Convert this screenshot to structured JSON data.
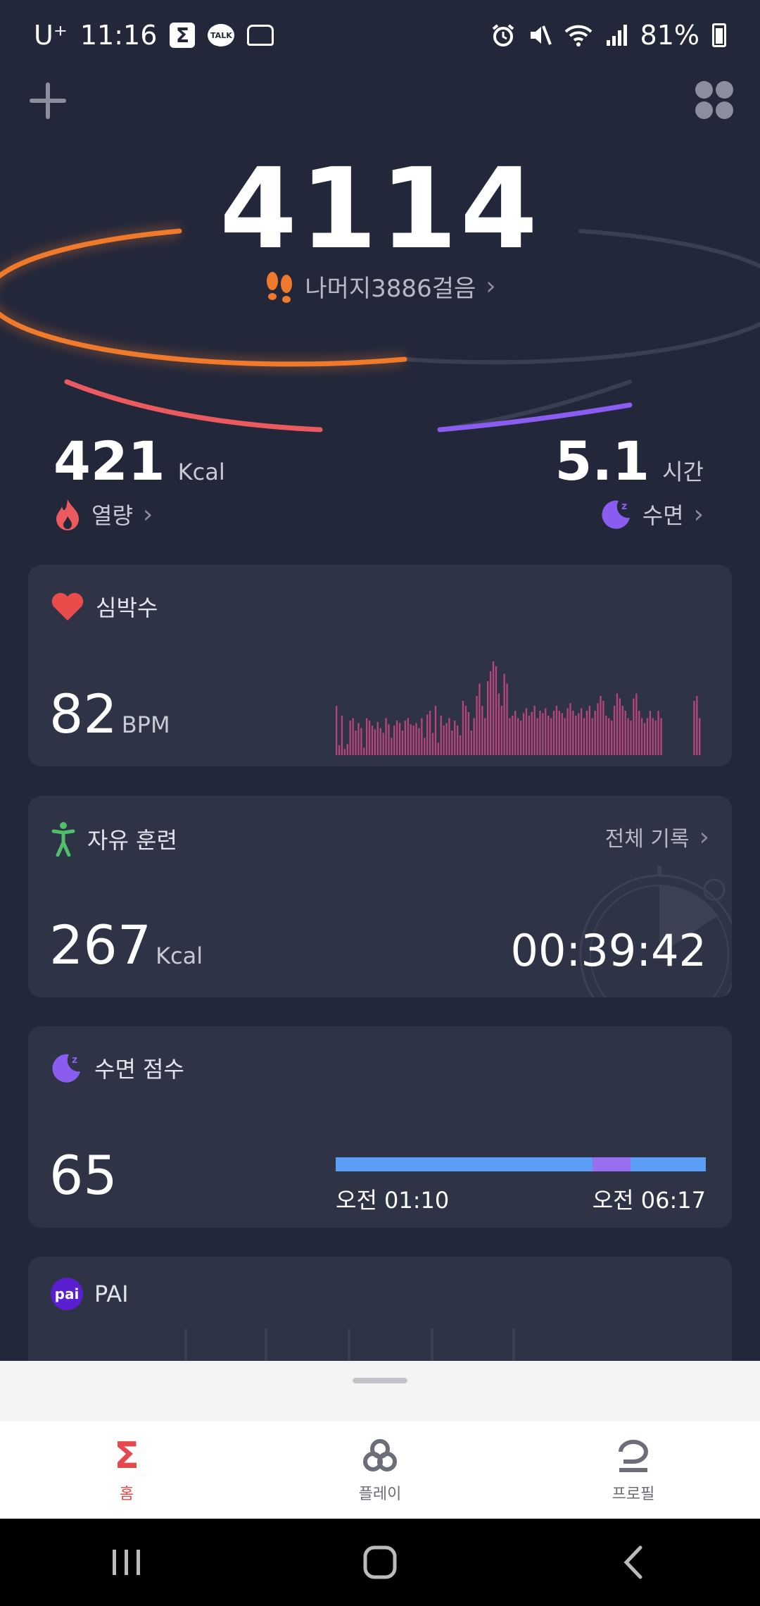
{
  "status_bar": {
    "carrier": "U⁺",
    "time": "11:16",
    "talk_label": "TALK",
    "battery": "81%"
  },
  "steps": {
    "count": "4114",
    "remaining": "나머지3886걸음"
  },
  "calories": {
    "value": "421",
    "unit": "Kcal",
    "label": "열량"
  },
  "sleep_summary": {
    "value": "5.1",
    "unit": "시간",
    "label": "수면"
  },
  "heart_card": {
    "title": "심박수",
    "value": "82",
    "unit": "BPM",
    "chart_data": {
      "type": "bar",
      "values": [
        40,
        8,
        32,
        5,
        9,
        28,
        30,
        20,
        26,
        22,
        6,
        30,
        28,
        24,
        21,
        27,
        22,
        18,
        30,
        25,
        14,
        24,
        28,
        26,
        20,
        28,
        30,
        25,
        24,
        26,
        22,
        30,
        14,
        33,
        36,
        18,
        40,
        10,
        32,
        24,
        26,
        30,
        20,
        28,
        24,
        16,
        44,
        40,
        35,
        20,
        30,
        48,
        58,
        40,
        30,
        60,
        68,
        76,
        72,
        50,
        40,
        66,
        58,
        30,
        32,
        36,
        30,
        28,
        34,
        38,
        32,
        35,
        40,
        30,
        36,
        34,
        38,
        32,
        30,
        36,
        40,
        36,
        34,
        30,
        38,
        42,
        36,
        32,
        34,
        38,
        30,
        36,
        40,
        30,
        36,
        42,
        48,
        44,
        32,
        30,
        28,
        40,
        50,
        46,
        40,
        36,
        30,
        28,
        46,
        50,
        36,
        30,
        26,
        30,
        36,
        30,
        28,
        36,
        30,
        0,
        0,
        0,
        0,
        0,
        0,
        0,
        0,
        0,
        0,
        0,
        44,
        48,
        30
      ]
    }
  },
  "workout_card": {
    "title": "자유 훈련",
    "link": "전체 기록",
    "value": "267",
    "unit": "Kcal",
    "duration": "00:39:42"
  },
  "sleep_card": {
    "title": "수면 점수",
    "score": "65",
    "start": "오전 01:10",
    "end": "오전 06:17"
  },
  "pai_card": {
    "title": "PAI",
    "badge": "pai"
  },
  "nav": {
    "home": "홈",
    "play": "플레이",
    "profile": "프로필"
  },
  "colors": {
    "background": "#23273a",
    "card": "#2f3346",
    "steps_arc": "#f07a2c",
    "calories_arc": "#ea5a5f",
    "sleep_arc": "#8a5cf0",
    "heart_bars": "#b8467a",
    "nav_active": "#e5484d"
  }
}
